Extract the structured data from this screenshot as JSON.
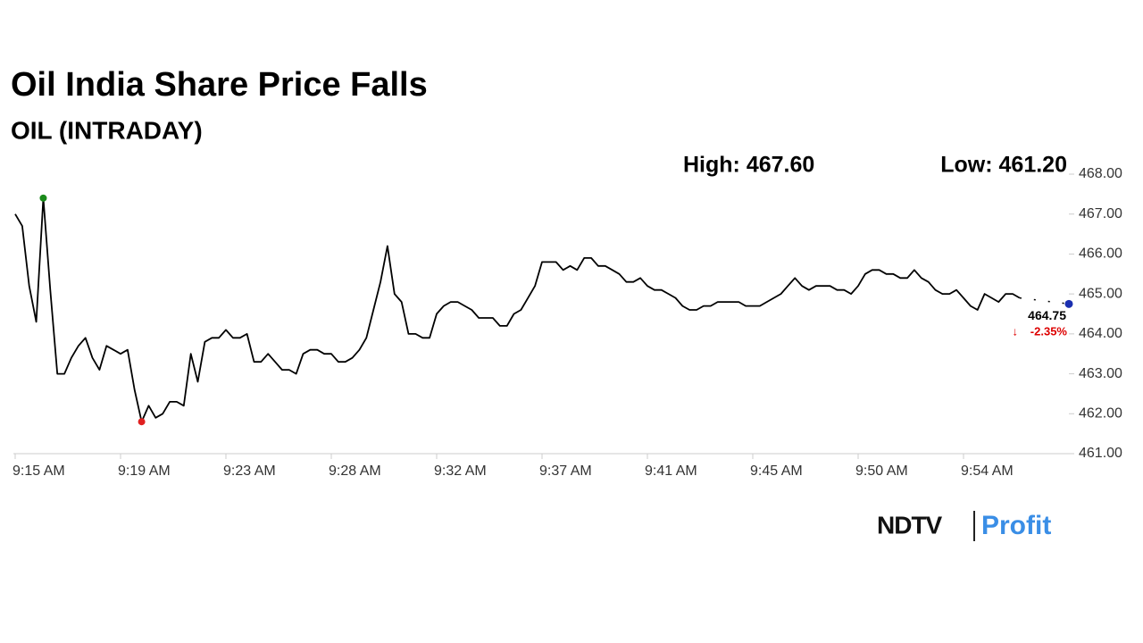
{
  "chart_data": {
    "type": "line",
    "title": "Oil India Share Price Falls",
    "subtitle": "OIL (INTRADAY)",
    "annotations": [
      "High: 467.60",
      "Low: 461.20"
    ],
    "change_label": "-2.35%",
    "logo": [
      "NDTV",
      "Profit"
    ],
    "color": "#000000",
    "ylim": [
      461,
      468
    ],
    "yticks": [
      {
        "value": 461,
        "label": "461.00"
      },
      {
        "value": 462,
        "label": "462.00"
      },
      {
        "value": 463,
        "label": "463.00"
      },
      {
        "value": 464,
        "label": "464.00"
      },
      {
        "value": 465,
        "label": "465.00"
      },
      {
        "value": 466,
        "label": "466.00"
      },
      {
        "value": 467,
        "label": "467.00"
      },
      {
        "value": 468,
        "label": "468.00"
      }
    ],
    "xlim": [
      0,
      150
    ],
    "xticks": [
      {
        "value": 0,
        "label": "9:15 AM"
      },
      {
        "value": 15,
        "label": "9:19 AM"
      },
      {
        "value": 30,
        "label": "9:23 AM"
      },
      {
        "value": 45,
        "label": "9:28 AM"
      },
      {
        "value": 60,
        "label": "9:32 AM"
      },
      {
        "value": 75,
        "label": "9:37 AM"
      },
      {
        "value": 90,
        "label": "9:41 AM"
      },
      {
        "value": 105,
        "label": "9:45 AM"
      },
      {
        "value": 120,
        "label": "9:50 AM"
      },
      {
        "value": 135,
        "label": "9:54 AM"
      }
    ],
    "values": [
      467.0,
      466.7,
      465.2,
      464.3,
      467.4,
      465.1,
      463.0,
      463.0,
      463.4,
      463.7,
      463.9,
      463.4,
      463.1,
      463.7,
      463.6,
      463.5,
      463.6,
      462.6,
      461.8,
      462.2,
      461.9,
      462.0,
      462.3,
      462.3,
      462.2,
      463.5,
      462.8,
      463.8,
      463.9,
      463.9,
      464.1,
      463.9,
      463.9,
      464.0,
      463.3,
      463.3,
      463.5,
      463.3,
      463.1,
      463.1,
      463.0,
      463.5,
      463.6,
      463.6,
      463.5,
      463.5,
      463.3,
      463.3,
      463.4,
      463.6,
      463.9,
      464.6,
      465.3,
      466.2,
      465.0,
      464.8,
      464.0,
      464.0,
      463.9,
      463.9,
      464.5,
      464.7,
      464.8,
      464.8,
      464.7,
      464.6,
      464.4,
      464.4,
      464.4,
      464.2,
      464.2,
      464.5,
      464.6,
      464.9,
      465.2,
      465.8,
      465.8,
      465.8,
      465.6,
      465.7,
      465.6,
      465.9,
      465.9,
      465.7,
      465.7,
      465.6,
      465.5,
      465.3,
      465.3,
      465.4,
      465.2,
      465.1,
      465.1,
      465.0,
      464.9,
      464.7,
      464.6,
      464.6,
      464.7,
      464.7,
      464.8,
      464.8,
      464.8,
      464.8,
      464.7,
      464.7,
      464.7,
      464.8,
      464.9,
      465.0,
      465.2,
      465.4,
      465.2,
      465.1,
      465.2,
      465.2,
      465.2,
      465.1,
      465.1,
      465.0,
      465.2,
      465.5,
      465.6,
      465.6,
      465.5,
      465.5,
      465.4,
      465.4,
      465.6,
      465.4,
      465.3,
      465.1,
      465.0,
      465.0,
      465.1,
      464.9,
      464.7,
      464.6,
      465.0,
      464.9,
      464.8,
      465.0,
      465.0,
      464.9,
      null,
      null,
      null,
      null,
      null,
      null,
      464.75
    ],
    "high_index": 4,
    "low_index": 18
  }
}
